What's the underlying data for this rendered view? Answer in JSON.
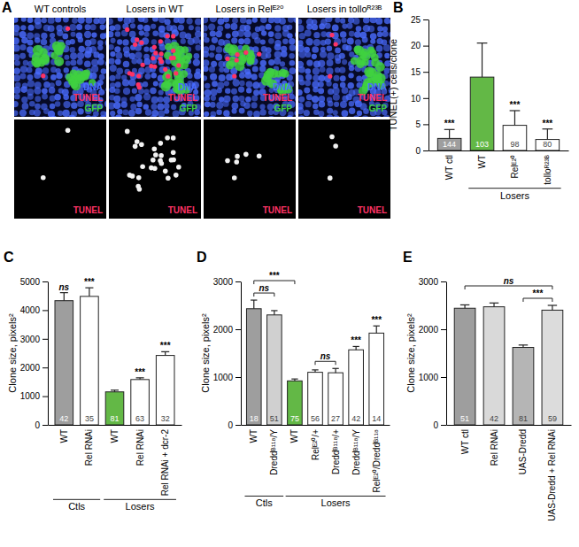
{
  "image_panel": {
    "panel_label": "A",
    "columns": [
      "WT controls",
      "Losers in WT",
      "Losers in Relᴱ²⁰",
      "Losers in tolloᴿ²³ᴮ"
    ],
    "channels": [
      {
        "name": "DNA",
        "color": "#4a6cff"
      },
      {
        "name": "TUNEL",
        "color": "#ff3366"
      },
      {
        "name": "GFP",
        "color": "#3fd13f"
      }
    ],
    "bottom_label": "TUNEL",
    "bottom_color": "#ff3366"
  },
  "chart_data": [
    {
      "type": "bar",
      "panel_label": "B",
      "y_label": "TUNEL(+) cells/clone",
      "categories": [
        "WT ctl",
        "WT",
        "Relᴱ²⁰",
        "tolloᴿ²³ᴮ"
      ],
      "values": [
        2.3,
        14,
        4.8,
        2.1
      ],
      "errors": [
        1.7,
        6.5,
        2.8,
        2.0
      ],
      "n": [
        144,
        103,
        98,
        80
      ],
      "colors": [
        "#9e9e9e",
        "#63b846",
        "#ffffff",
        "#ffffff"
      ],
      "ylim": [
        0,
        25
      ],
      "yticks": [
        0,
        5,
        10,
        15,
        20,
        25
      ],
      "significance": [
        "***",
        null,
        "***",
        "***"
      ],
      "groups": [
        {
          "label": "Losers",
          "from": 1,
          "to": 3
        }
      ]
    },
    {
      "type": "bar",
      "panel_label": "C",
      "y_label": "Clone size, pixels²",
      "categories": [
        "WT",
        "Rel RNAi",
        "WT",
        "Rel RNAi",
        "Rel RNAi + dcr-2"
      ],
      "values": [
        4330,
        4480,
        1150,
        1580,
        2420
      ],
      "errors": [
        280,
        300,
        60,
        60,
        130
      ],
      "n": [
        42,
        35,
        81,
        63,
        32
      ],
      "colors": [
        "#9e9e9e",
        "#ffffff",
        "#63b846",
        "#ffffff",
        "#ffffff"
      ],
      "ylim": [
        0,
        5000
      ],
      "yticks": [
        0,
        1000,
        2000,
        3000,
        4000,
        5000
      ],
      "significance": [
        "ns",
        "***",
        null,
        "***",
        "***"
      ],
      "groups": [
        {
          "label": "Ctls",
          "from": 0,
          "to": 1
        },
        {
          "label": "Losers",
          "from": 2,
          "to": 4
        }
      ]
    },
    {
      "type": "bar",
      "panel_label": "D",
      "y_label": "Clone size, pixels²",
      "categories": [
        "WT",
        "Dreddᴮ¹¹⁸/Y",
        "WT",
        "Relᴱ²⁰/+",
        "Dreddᴮ¹¹⁸/+",
        "Dreddᴮ¹¹⁸/Y",
        "Relᴱ²⁰/Dreddᴮ¹¹⁸"
      ],
      "values": [
        2430,
        2300,
        920,
        1100,
        1090,
        1570,
        1920
      ],
      "errors": [
        180,
        90,
        40,
        50,
        90,
        70,
        150
      ],
      "n": [
        18,
        51,
        75,
        56,
        27,
        42,
        14
      ],
      "colors": [
        "#9e9e9e",
        "#d0d0d0",
        "#63b846",
        "#ffffff",
        "#ffffff",
        "#ffffff",
        "#ffffff"
      ],
      "ylim": [
        0,
        3000
      ],
      "yticks": [
        0,
        1000,
        2000,
        3000
      ],
      "significance": [
        null,
        null,
        null,
        null,
        null,
        "***",
        "***"
      ],
      "groups": [
        {
          "label": "Ctls",
          "from": 0,
          "to": 1
        },
        {
          "label": "Losers",
          "from": 2,
          "to": 6
        }
      ],
      "brackets": [
        {
          "from": 0,
          "to": 1,
          "label": "ns"
        },
        {
          "from": 0,
          "to": 2,
          "label": "***"
        },
        {
          "from": 3,
          "to": 4,
          "label": "ns"
        }
      ]
    },
    {
      "type": "bar",
      "panel_label": "E",
      "y_label": "Clone size, pixels²",
      "categories": [
        "WT ctl",
        "Rel RNAi",
        "UAS-Dredd",
        "UAS-Dredd + Rel RNAi"
      ],
      "values": [
        2440,
        2470,
        1620,
        2400
      ],
      "errors": [
        70,
        80,
        50,
        100
      ],
      "n": [
        51,
        42,
        81,
        59
      ],
      "colors": [
        "#9e9e9e",
        "#d9d9d9",
        "#b5b5b5",
        "#dcdcdc"
      ],
      "ylim": [
        0,
        3000
      ],
      "yticks": [
        0,
        1000,
        2000,
        3000
      ],
      "brackets": [
        {
          "from": 2,
          "to": 3,
          "label": "***"
        },
        {
          "from": 0,
          "to": 3,
          "label": "ns"
        }
      ]
    }
  ]
}
